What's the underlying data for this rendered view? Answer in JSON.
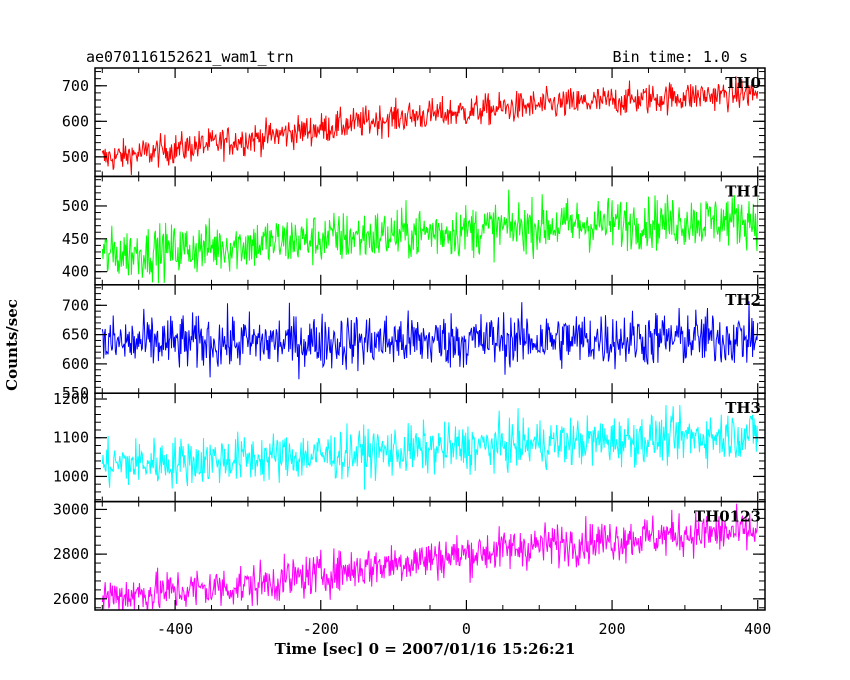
{
  "header": {
    "title": "ae070116152621_wam1_trn",
    "bin_time": "Bin time: 1.0 s"
  },
  "axes": {
    "xlabel": "Time [sec] 0 = 2007/01/16 15:26:21",
    "ylabel": "Counts/sec"
  },
  "chart_data": {
    "type": "line",
    "x_range": [
      -510,
      410
    ],
    "x_ticks": [
      -400,
      -200,
      0,
      200,
      400
    ],
    "x_start": -500,
    "x_end": 400,
    "panels": [
      {
        "name": "TH0",
        "color": "#ff0000",
        "ylim": [
          445,
          750
        ],
        "y_ticks": [
          500,
          600,
          700
        ],
        "trend": [
          [
            -500,
            495
          ],
          [
            -300,
            550
          ],
          [
            -100,
            610
          ],
          [
            100,
            645
          ],
          [
            300,
            670
          ],
          [
            400,
            680
          ]
        ],
        "noise": 22
      },
      {
        "name": "TH1",
        "color": "#00ff00",
        "ylim": [
          380,
          545
        ],
        "y_ticks": [
          400,
          450,
          500
        ],
        "trend": [
          [
            -500,
            425
          ],
          [
            -200,
            450
          ],
          [
            100,
            470
          ],
          [
            400,
            480
          ]
        ],
        "noise": 20
      },
      {
        "name": "TH2",
        "color": "#0000ff",
        "ylim": [
          550,
          735
        ],
        "y_ticks": [
          550,
          600,
          650,
          700
        ],
        "trend": [
          [
            -500,
            635
          ],
          [
            0,
            640
          ],
          [
            400,
            645
          ]
        ],
        "noise": 24
      },
      {
        "name": "TH3",
        "color": "#00ffff",
        "ylim": [
          935,
          1215
        ],
        "y_ticks": [
          1000,
          1100,
          1200
        ],
        "trend": [
          [
            -500,
            1030
          ],
          [
            -200,
            1055
          ],
          [
            100,
            1085
          ],
          [
            400,
            1110
          ]
        ],
        "noise": 32
      },
      {
        "name": "TH0123",
        "color": "#ff00ff",
        "ylim": [
          2550,
          3035
        ],
        "y_ticks": [
          2600,
          2800,
          3000
        ],
        "trend": [
          [
            -500,
            2610
          ],
          [
            -300,
            2660
          ],
          [
            -100,
            2760
          ],
          [
            100,
            2840
          ],
          [
            300,
            2890
          ],
          [
            400,
            2900
          ]
        ],
        "noise": 48
      }
    ]
  }
}
